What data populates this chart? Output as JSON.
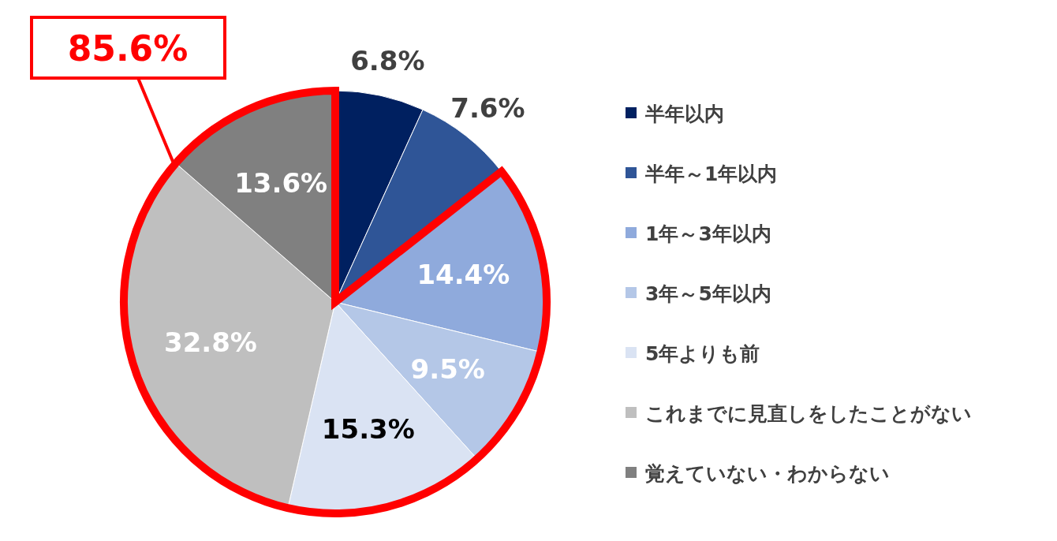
{
  "chart_data": {
    "type": "pie",
    "categories": [
      "半年以内",
      "半年～1年以内",
      "1年～3年以内",
      "3年～5年以内",
      "5年よりも前",
      "これまでに見直しをしたことがない",
      "覚えていない・わからない"
    ],
    "values": [
      6.8,
      7.6,
      14.4,
      9.5,
      15.3,
      32.8,
      13.6
    ],
    "colors": [
      "#002060",
      "#2f5597",
      "#8faadc",
      "#b4c7e7",
      "#dae3f3",
      "#bfbfbf",
      "#808080"
    ],
    "value_labels": [
      "6.8%",
      "7.6%",
      "14.4%",
      "9.5%",
      "15.3%",
      "32.8%",
      "13.6%"
    ],
    "annotations": [
      "85.6%"
    ],
    "legend": "right"
  }
}
